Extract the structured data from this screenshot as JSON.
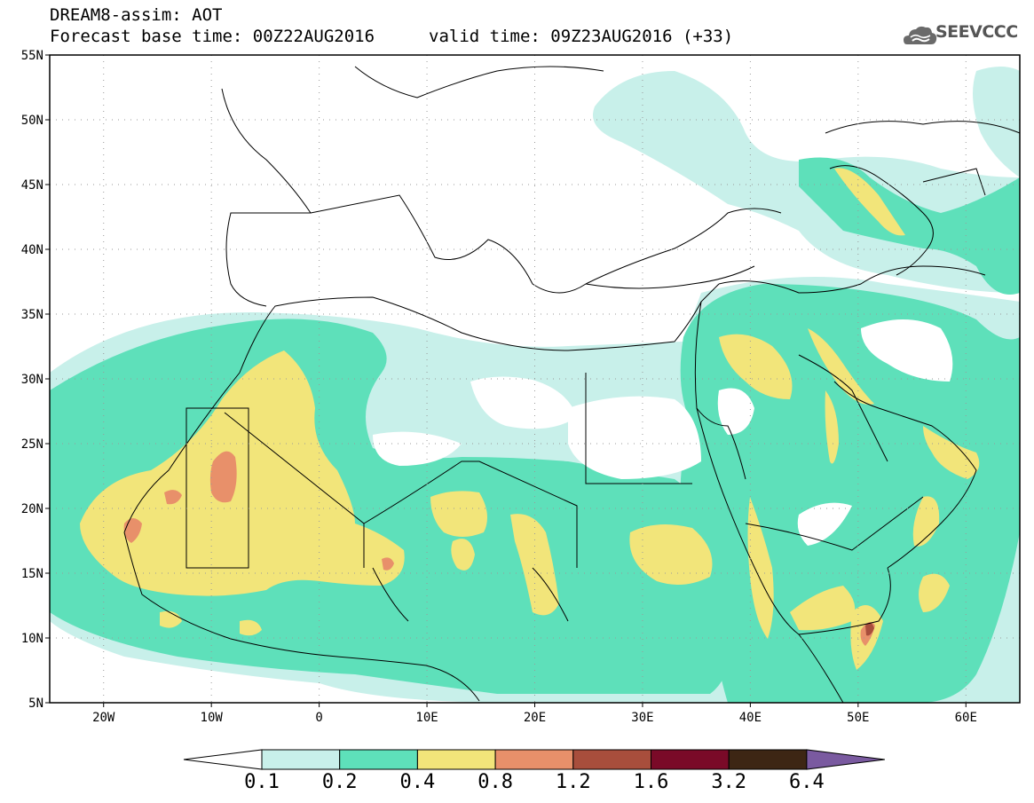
{
  "header": {
    "title": "DREAM8-assim: AOT",
    "base_time": "Forecast base time: 00Z22AUG2016",
    "valid_time": "valid time: 09Z23AUG2016 (+33)",
    "logo_text": "SEEVCCC"
  },
  "map": {
    "lon_range": [
      -25,
      65
    ],
    "lat_range": [
      5,
      55
    ],
    "lat_labels": [
      "5N",
      "10N",
      "15N",
      "20N",
      "25N",
      "30N",
      "35N",
      "40N",
      "45N",
      "50N",
      "55N"
    ],
    "lon_labels": [
      "20W",
      "10W",
      "0",
      "10E",
      "20E",
      "30E",
      "40E",
      "50E",
      "60E"
    ],
    "gridlines": "dotted"
  },
  "colorbar": {
    "colors": [
      "#ffffff",
      "#c8f0ea",
      "#5ee0ba",
      "#f2e57a",
      "#e8906a",
      "#a84e3c",
      "#7a0a28",
      "#3d2614",
      "#7a5aa0"
    ],
    "labels": [
      "0.1",
      "0.2",
      "0.4",
      "0.8",
      "1.2",
      "1.6",
      "3.2",
      "6.4"
    ]
  }
}
